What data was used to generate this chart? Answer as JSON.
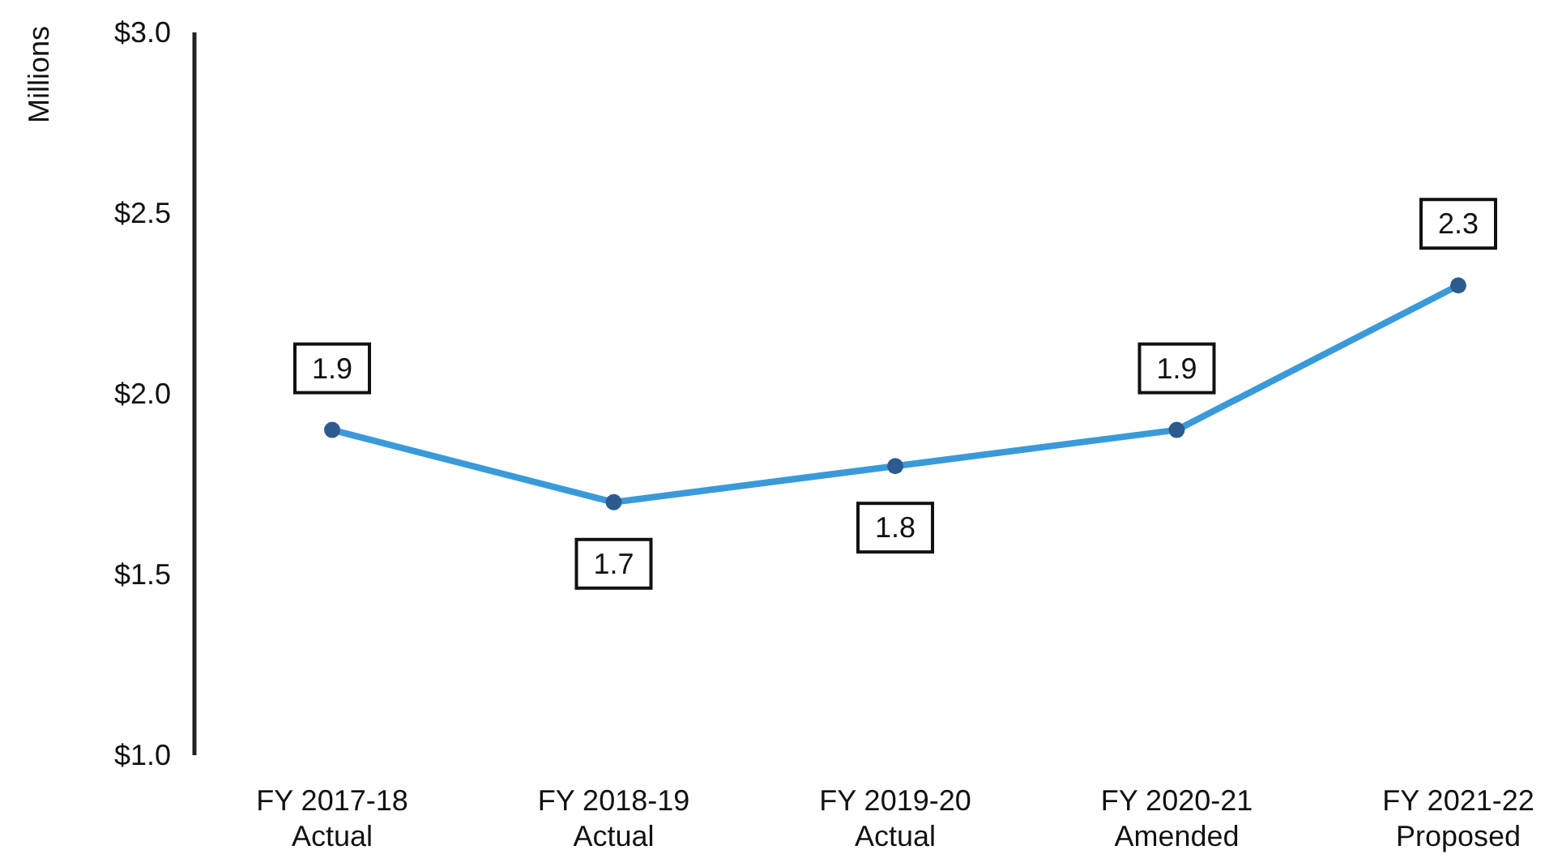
{
  "chart_data": {
    "type": "line",
    "ylabel": "Millions",
    "categories": [
      "FY 2017-18\nActual",
      "FY 2018-19\nActual",
      "FY 2019-20\nActual",
      "FY 2020-21\nAmended",
      "FY 2021-22\nProposed"
    ],
    "series": [
      {
        "color": "#3a9ad9",
        "values": [
          1.9,
          1.7,
          1.8,
          1.9,
          2.3
        ]
      }
    ],
    "ylim": [
      1,
      3
    ],
    "yticks": [
      {
        "value": 1,
        "label": "$1.0"
      },
      {
        "value": 1.5,
        "label": "$1.5"
      },
      {
        "value": 2,
        "label": "$2.0"
      },
      {
        "value": 2.5,
        "label": "$2.5"
      },
      {
        "value": 3,
        "label": "$3.0"
      }
    ],
    "data_labels": true,
    "marker": "circle",
    "line_style": "solid"
  }
}
